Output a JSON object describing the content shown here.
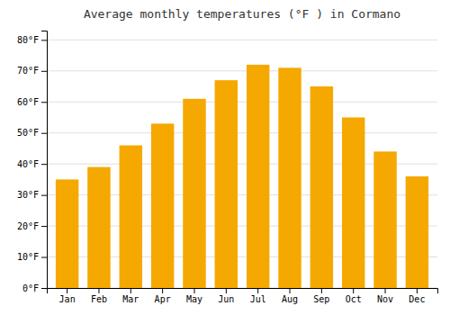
{
  "chart_data": {
    "type": "bar",
    "title": "Average monthly temperatures (°F ) in Cormano",
    "categories": [
      "Jan",
      "Feb",
      "Mar",
      "Apr",
      "May",
      "Jun",
      "Jul",
      "Aug",
      "Sep",
      "Oct",
      "Nov",
      "Dec"
    ],
    "values": [
      35,
      39,
      46,
      53,
      61,
      67,
      72,
      71,
      65,
      55,
      44,
      36
    ],
    "color": "#F5A800",
    "ylim": [
      0,
      83
    ],
    "yticks": [
      {
        "value": 0,
        "label": "0°F"
      },
      {
        "value": 10,
        "label": "10°F"
      },
      {
        "value": 20,
        "label": "20°F"
      },
      {
        "value": 30,
        "label": "30°F"
      },
      {
        "value": 40,
        "label": "40°F"
      },
      {
        "value": 50,
        "label": "50°F"
      },
      {
        "value": 60,
        "label": "60°F"
      },
      {
        "value": 70,
        "label": "70°F"
      },
      {
        "value": 80,
        "label": "80°F"
      }
    ],
    "grid": true
  }
}
